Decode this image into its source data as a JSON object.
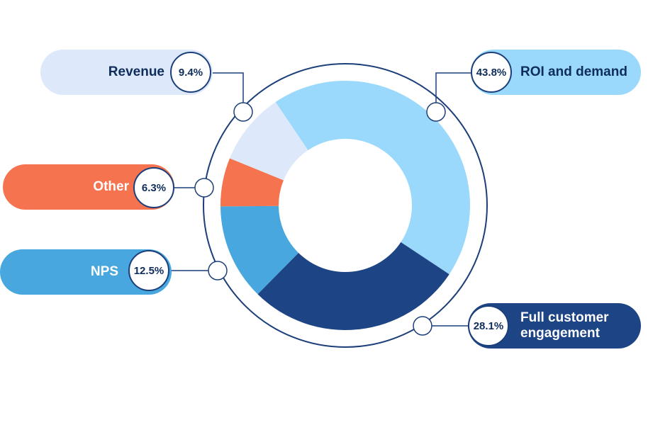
{
  "chart_data": {
    "type": "pie",
    "style": "donut",
    "title": "",
    "legend": "callouts",
    "categories": [
      "ROI and demand",
      "Full customer engagement",
      "NPS",
      "Other",
      "Revenue"
    ],
    "values": [
      43.8,
      28.1,
      12.5,
      6.3,
      9.4
    ],
    "labels": [
      "43.8%",
      "28.1%",
      "12.5%",
      "6.3%",
      "9.4%"
    ],
    "colors": [
      "#9ad9fb",
      "#1d4484",
      "#48a7de",
      "#f5734f",
      "#dde9fa"
    ],
    "label_colors": [
      "#0f2d5c",
      "#ffffff",
      "#ffffff",
      "#ffffff",
      "#0f2d5c"
    ],
    "outline_color": "#1c3f7a"
  }
}
